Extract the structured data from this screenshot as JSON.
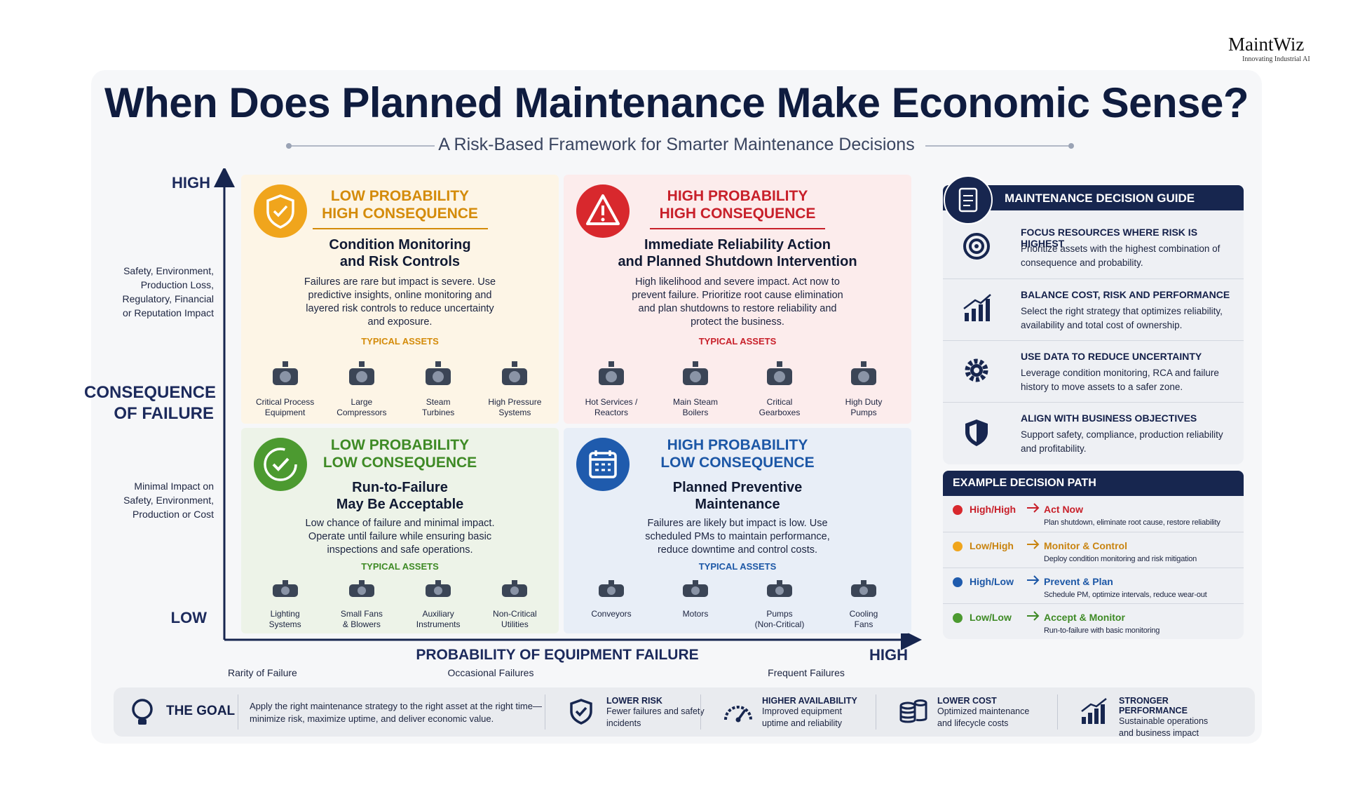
{
  "brand": {
    "name": "MaintWiz",
    "tagline": "Innovating Industrial AI"
  },
  "header": {
    "title": "When Does Planned Maintenance Make Economic Sense?",
    "subtitle": "A Risk-Based Framework for Smarter Maintenance Decisions"
  },
  "axes": {
    "y_high": "HIGH",
    "y_low": "LOW",
    "y_title": "CONSEQUENCE\nOF FAILURE",
    "y_high_note": "Safety, Environment,\nProduction Loss,\nRegulatory, Financial\nor Reputation Impact",
    "y_low_note": "Minimal Impact on\nSafety, Environment,\nProduction or Cost",
    "x_title": "PROBABILITY OF EQUIPMENT FAILURE",
    "x_high": "HIGH",
    "x_notes": [
      "Rarity of Failure",
      "Occasional Failures",
      "Frequent Failures"
    ]
  },
  "quadrants": [
    {
      "label": "LOW PROBABILITY\nHIGH CONSEQUENCE",
      "heading": "Condition Monitoring\nand Risk Controls",
      "text": "Failures are rare but impact is severe. Use predictive insights, online monitoring and layered risk controls to reduce uncertainty and exposure.",
      "assets_title": "TYPICAL ASSETS",
      "assets": [
        "Critical Process\nEquipment",
        "Large\nCompressors",
        "Steam\nTurbines",
        "High Pressure\nSystems"
      ]
    },
    {
      "label": "HIGH PROBABILITY\nHIGH CONSEQUENCE",
      "heading": "Immediate Reliability Action\nand Planned Shutdown Intervention",
      "text": "High likelihood and severe impact. Act now to prevent failure. Prioritize root cause elimination and plan shutdowns to restore reliability and protect the business.",
      "assets_title": "TYPICAL ASSETS",
      "assets": [
        "Hot Services /\nReactors",
        "Main Steam\nBoilers",
        "Critical\nGearboxes",
        "High Duty\nPumps"
      ]
    },
    {
      "label": "LOW PROBABILITY\nLOW CONSEQUENCE",
      "heading": "Run-to-Failure\nMay Be Acceptable",
      "text": "Low chance of failure and minimal impact. Operate until failure while ensuring basic inspections and safe operations.",
      "assets_title": "TYPICAL ASSETS",
      "assets": [
        "Lighting\nSystems",
        "Small Fans\n& Blowers",
        "Auxiliary\nInstruments",
        "Non-Critical\nUtilities"
      ]
    },
    {
      "label": "HIGH PROBABILITY\nLOW CONSEQUENCE",
      "heading": "Planned Preventive\nMaintenance",
      "text": "Failures are likely but impact is low. Use scheduled PMs to maintain performance, reduce downtime and control costs.",
      "assets_title": "TYPICAL ASSETS",
      "assets": [
        "Conveyors",
        "Motors",
        "Pumps\n(Non-Critical)",
        "Cooling\nFans"
      ]
    }
  ],
  "guide": {
    "title": "MAINTENANCE DECISION GUIDE",
    "items": [
      {
        "title": "FOCUS RESOURCES WHERE RISK IS HIGHEST",
        "text": "Prioritize assets with the highest combination of consequence and probability."
      },
      {
        "title": "BALANCE COST, RISK AND PERFORMANCE",
        "text": "Select the right strategy that optimizes reliability, availability and total cost of ownership."
      },
      {
        "title": "USE DATA TO REDUCE UNCERTAINTY",
        "text": "Leverage condition monitoring, RCA and failure history to move assets to a safer zone."
      },
      {
        "title": "ALIGN WITH BUSINESS OBJECTIVES",
        "text": "Support safety, compliance, production reliability and profitability."
      }
    ]
  },
  "decision_path": {
    "title": "EXAMPLE DECISION PATH",
    "rows": [
      {
        "level": "High/High",
        "action": "Act Now",
        "text": "Plan shutdown, eliminate root cause, restore reliability"
      },
      {
        "level": "Low/High",
        "action": "Monitor & Control",
        "text": "Deploy condition monitoring and risk mitigation"
      },
      {
        "level": "High/Low",
        "action": "Prevent & Plan",
        "text": "Schedule PM, optimize intervals, reduce wear-out"
      },
      {
        "level": "Low/Low",
        "action": "Accept & Monitor",
        "text": "Run-to-failure with basic monitoring"
      }
    ]
  },
  "goal": {
    "title": "THE GOAL",
    "text": "Apply the right maintenance strategy to the right asset at the right time—minimize risk, maximize uptime, and deliver economic value.",
    "benefits": [
      {
        "title": "LOWER RISK",
        "text": "Fewer failures and safety incidents"
      },
      {
        "title": "HIGHER AVAILABILITY",
        "text": "Improved equipment uptime and reliability"
      },
      {
        "title": "LOWER COST",
        "text": "Optimized maintenance and lifecycle costs"
      },
      {
        "title": "STRONGER PERFORMANCE",
        "text": "Sustainable operations and business impact"
      }
    ]
  }
}
